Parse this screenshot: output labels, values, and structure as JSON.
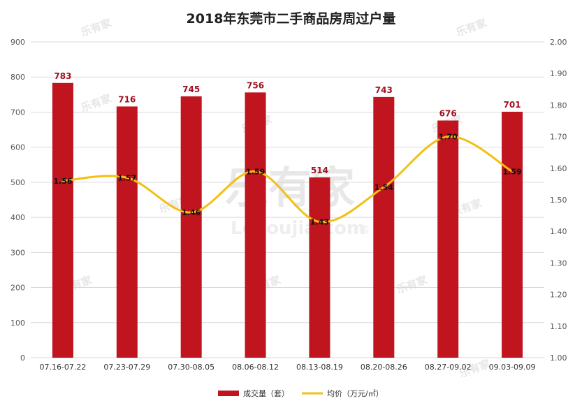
{
  "watermark": {
    "brand": "乐有家",
    "latin": "Leyoujia.com",
    "reg": "®"
  },
  "chart_data": {
    "type": "bar",
    "title": "2018年东莞市二手商品房周过户量",
    "categories": [
      "07.16-07.22",
      "07.23-07.29",
      "07.30-08.05",
      "08.06-08.12",
      "08.13-08.19",
      "08.20-08.26",
      "08.27-09.02",
      "09.03-09.09"
    ],
    "series": [
      {
        "name": "成交量（套）",
        "type": "bar",
        "axis": "left",
        "color": "#c0141f",
        "values": [
          783,
          716,
          745,
          756,
          514,
          743,
          676,
          701
        ],
        "labels": [
          "783",
          "716",
          "745",
          "756",
          "514",
          "743",
          "676",
          "701"
        ]
      },
      {
        "name": "均价（万元/㎡）",
        "type": "line",
        "axis": "right",
        "color": "#f2c015",
        "values": [
          1.56,
          1.57,
          1.46,
          1.59,
          1.43,
          1.54,
          1.7,
          1.59
        ],
        "labels": [
          "1.56",
          "1.57",
          "1.46",
          "1.59",
          "1.43",
          "1.54",
          "1.70",
          "1.59"
        ]
      }
    ],
    "yleft": {
      "min": 0,
      "max": 900,
      "ticks": [
        "0",
        "100",
        "200",
        "300",
        "400",
        "500",
        "600",
        "700",
        "800",
        "900"
      ]
    },
    "yright": {
      "min": 1.0,
      "max": 2.0,
      "ticks": [
        "1.00",
        "1.10",
        "1.20",
        "1.30",
        "1.40",
        "1.50",
        "1.60",
        "1.70",
        "1.80",
        "1.90",
        "2.00"
      ]
    },
    "grid": true,
    "legend_position": "bottom"
  }
}
